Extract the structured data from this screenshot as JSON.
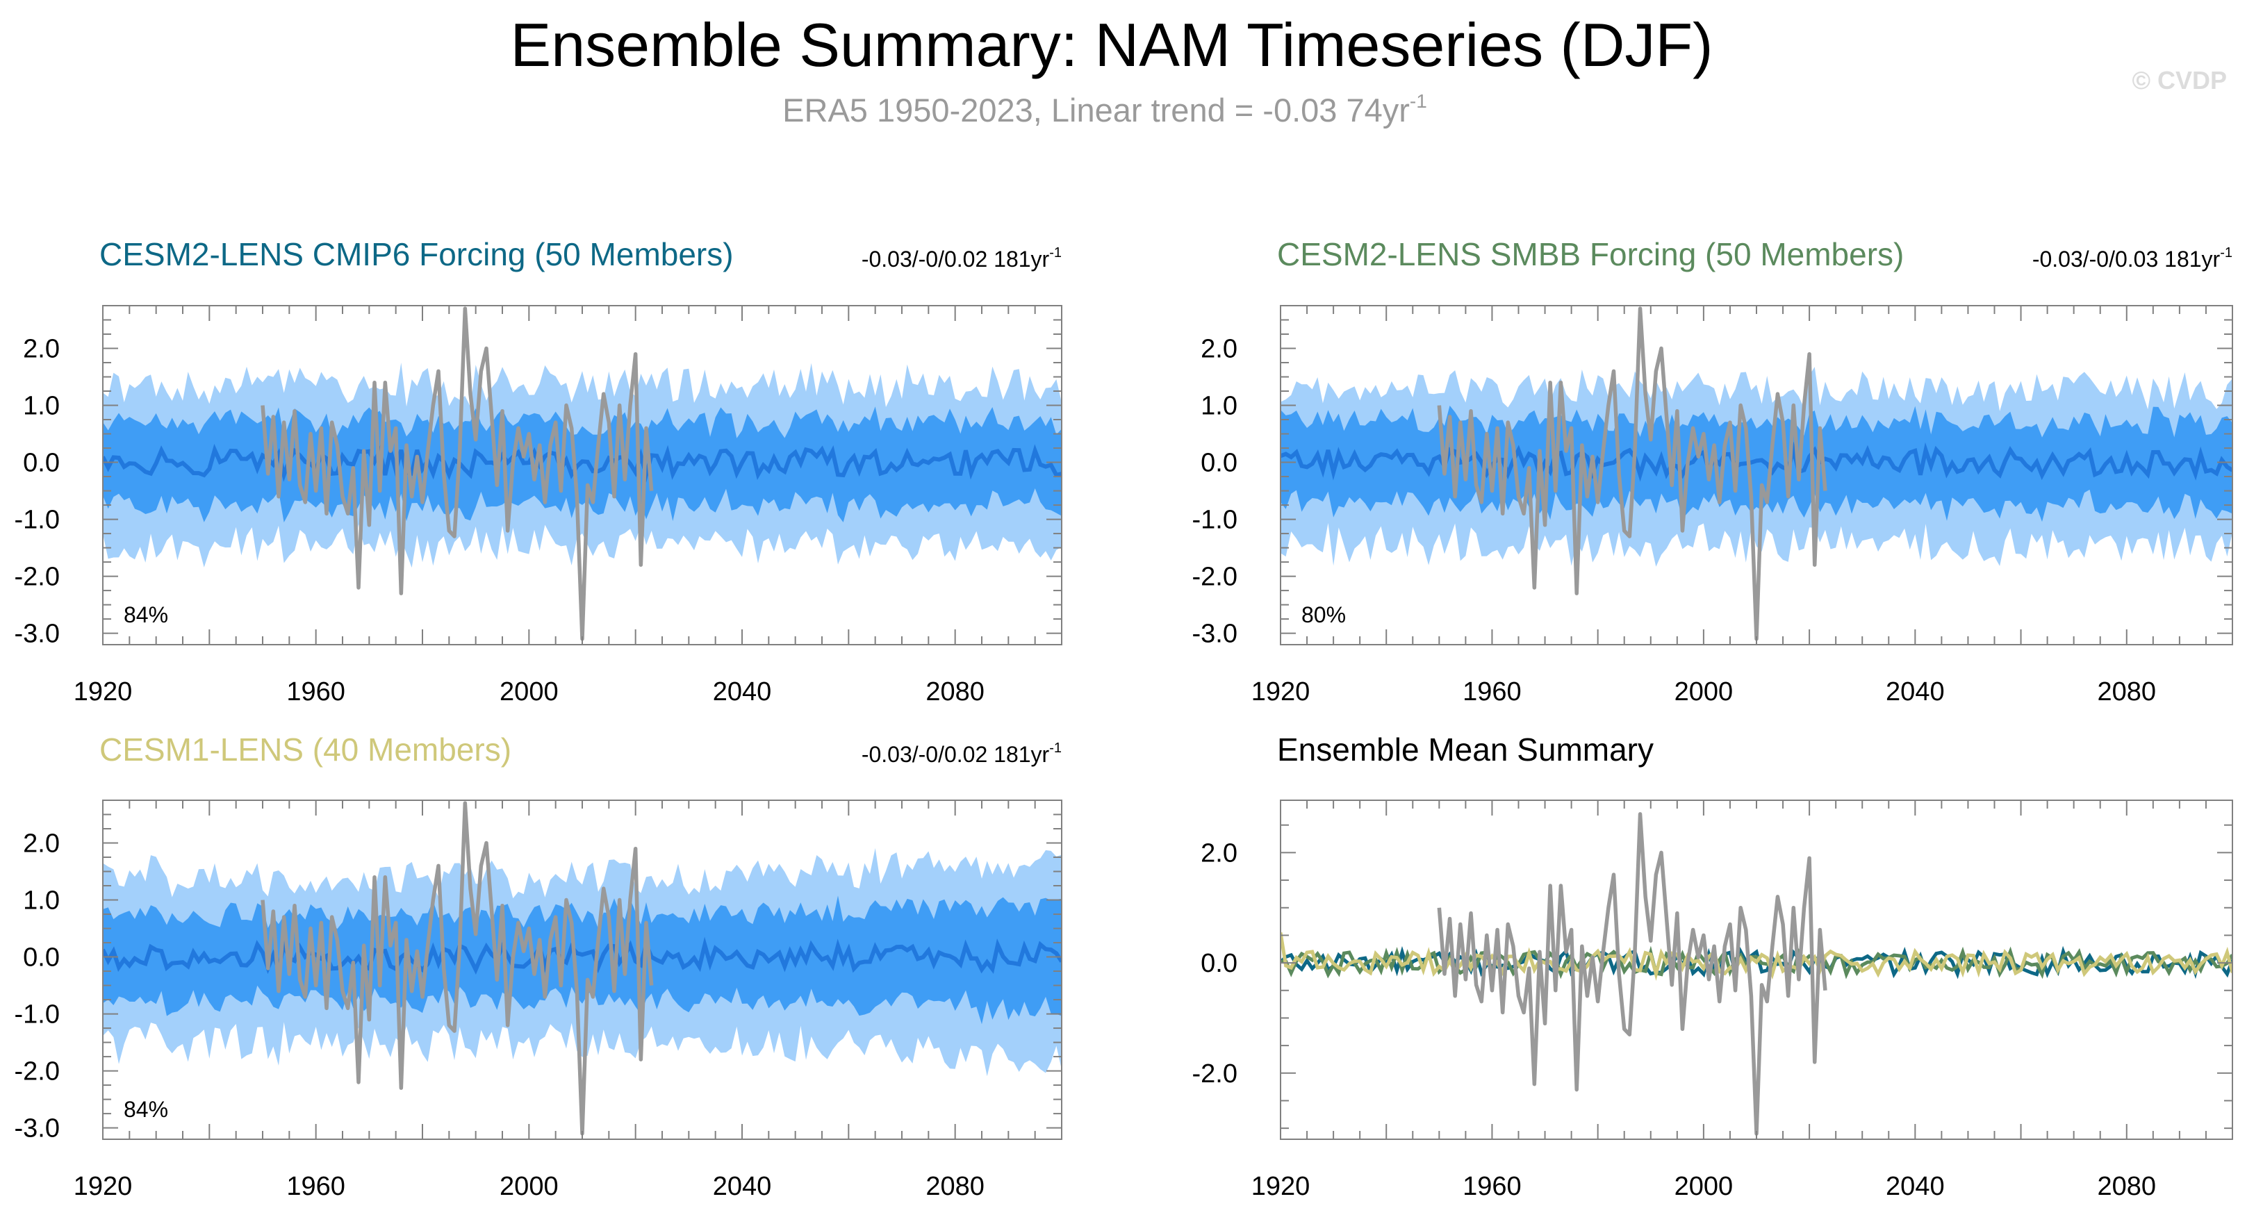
{
  "title": "Ensemble Summary: NAM Timeseries (DJF)",
  "subtitle": {
    "text": "ERA5 1950-2023, Linear trend = -0.03 74yr",
    "sup": "-1"
  },
  "copyright": "© CVDP",
  "colors": {
    "outer_band": "#a3d0fb",
    "inner_band": "#3f9df5",
    "ensemble_mean": "#2178dd",
    "observations": "#999999",
    "cesm2_cmip6": "#0d6886",
    "cesm2_smbb": "#5b8a5d",
    "cesm1": "#cfc87a",
    "frame": "#808080"
  },
  "panels": [
    {
      "id": "cesm2-cmip6",
      "title": "CESM2-LENS CMIP6 Forcing (50 Members)",
      "title_color": "#0d6886",
      "trend": "-0.03/-0/0.02 181yr",
      "trend_sup": "-1",
      "percent": "84%",
      "type": "ensemble"
    },
    {
      "id": "cesm2-smbb",
      "title": "CESM2-LENS SMBB Forcing (50 Members)",
      "title_color": "#5b8a5d",
      "trend": "-0.03/-0/0.03 181yr",
      "trend_sup": "-1",
      "percent": "80%",
      "type": "ensemble"
    },
    {
      "id": "cesm1",
      "title": "CESM1-LENS (40 Members)",
      "title_color": "#cfc87a",
      "trend": "-0.03/-0/0.02 181yr",
      "trend_sup": "-1",
      "percent": "84%",
      "type": "ensemble"
    },
    {
      "id": "ensemble-mean",
      "title": "Ensemble Mean Summary",
      "title_color": "#000000",
      "trend": "",
      "trend_sup": "",
      "percent": "",
      "type": "mean"
    }
  ],
  "chart_data": [
    {
      "type": "area",
      "title": "CESM2-LENS CMIP6 Forcing (50 Members)",
      "xlim": [
        1920,
        2100
      ],
      "ylim": [
        -3.2,
        2.75
      ],
      "x_ticks": [
        "1920",
        "1960",
        "2000",
        "2040",
        "2080"
      ],
      "y_ticks": [
        "2.0",
        "1.0",
        "0.0",
        "-1.0",
        "-2.0",
        "-3.0"
      ],
      "series": [
        {
          "kind": "band",
          "x_range": [
            1920,
            2100
          ],
          "upper_typical": 1.35,
          "lower_typical": -1.45
        },
        {
          "kind": "band",
          "x_range": [
            1920,
            2100
          ],
          "upper_typical": 0.7,
          "lower_typical": -0.75
        },
        {
          "kind": "ensemble-mean-line",
          "x_range": [
            1920,
            2100
          ],
          "values_near": 0.0
        },
        {
          "kind": "observations",
          "x_range": [
            1950,
            2023
          ]
        }
      ]
    },
    {
      "type": "area",
      "title": "CESM2-LENS SMBB Forcing (50 Members)",
      "xlim": [
        1920,
        2100
      ],
      "ylim": [
        -3.2,
        2.75
      ],
      "x_ticks": [
        "1920",
        "1960",
        "2000",
        "2040",
        "2080"
      ],
      "y_ticks": [
        "2.0",
        "1.0",
        "0.0",
        "-1.0",
        "-2.0",
        "-3.0"
      ],
      "series": [
        {
          "kind": "band",
          "x_range": [
            1920,
            2100
          ],
          "upper_typical": 1.3,
          "lower_typical": -1.45
        },
        {
          "kind": "band",
          "x_range": [
            1920,
            2100
          ],
          "upper_typical": 0.7,
          "lower_typical": -0.75
        },
        {
          "kind": "ensemble-mean-line",
          "x_range": [
            1920,
            2100
          ],
          "values_near": 0.0
        },
        {
          "kind": "observations",
          "x_range": [
            1950,
            2023
          ]
        }
      ]
    },
    {
      "type": "area",
      "title": "CESM1-LENS (40 Members)",
      "xlim": [
        1920,
        2100
      ],
      "ylim": [
        -3.2,
        2.75
      ],
      "x_ticks": [
        "1920",
        "1960",
        "2000",
        "2040",
        "2080"
      ],
      "y_ticks": [
        "2.0",
        "1.0",
        "0.0",
        "-1.0",
        "-2.0",
        "-3.0"
      ],
      "series": [
        {
          "kind": "band",
          "x_range": [
            1920,
            2100
          ],
          "upper_typical": 1.4,
          "lower_typical": -1.5
        },
        {
          "kind": "band",
          "x_range": [
            1920,
            2100
          ],
          "upper_typical": 0.75,
          "lower_typical": -0.75
        },
        {
          "kind": "ensemble-mean-line",
          "x_range": [
            1920,
            2100
          ],
          "values_near": 0.0
        },
        {
          "kind": "observations",
          "x_range": [
            1950,
            2023
          ]
        }
      ]
    },
    {
      "type": "line",
      "title": "Ensemble Mean Summary",
      "xlim": [
        1920,
        2100
      ],
      "ylim": [
        -3.2,
        2.95
      ],
      "x_ticks": [
        "1920",
        "1960",
        "2000",
        "2040",
        "2080"
      ],
      "y_ticks": [
        "2.0",
        "0.0",
        "-2.0"
      ],
      "series": [
        {
          "kind": "observations",
          "x_range": [
            1950,
            2023
          ]
        },
        {
          "kind": "mean-cesm2-cmip6",
          "x_range": [
            1920,
            2100
          ],
          "values_near": 0.0
        },
        {
          "kind": "mean-cesm2-smbb",
          "x_range": [
            1920,
            2100
          ],
          "values_near": 0.0
        },
        {
          "kind": "mean-cesm1",
          "x_range": [
            1920,
            2100
          ],
          "values_near": 0.0
        }
      ]
    }
  ],
  "observations": {
    "years": [
      1950,
      1951,
      1952,
      1953,
      1954,
      1955,
      1956,
      1957,
      1958,
      1959,
      1960,
      1961,
      1962,
      1963,
      1964,
      1965,
      1966,
      1967,
      1968,
      1969,
      1970,
      1971,
      1972,
      1973,
      1974,
      1975,
      1976,
      1977,
      1978,
      1979,
      1980,
      1981,
      1982,
      1983,
      1984,
      1985,
      1986,
      1987,
      1988,
      1989,
      1990,
      1991,
      1992,
      1993,
      1994,
      1995,
      1996,
      1997,
      1998,
      1999,
      2000,
      2001,
      2002,
      2003,
      2004,
      2005,
      2006,
      2007,
      2008,
      2009,
      2010,
      2011,
      2012,
      2013,
      2014,
      2015,
      2016,
      2017,
      2018,
      2019,
      2020,
      2021,
      2022,
      2023
    ],
    "values": [
      1.0,
      -0.2,
      0.8,
      -0.6,
      0.7,
      -0.3,
      0.9,
      -0.4,
      -0.7,
      0.5,
      -0.5,
      0.6,
      -0.9,
      0.7,
      0.3,
      -0.6,
      -0.9,
      -0.1,
      -2.2,
      0.2,
      -1.1,
      1.4,
      -0.5,
      1.4,
      0.2,
      0.6,
      -2.3,
      0.3,
      -0.6,
      0.1,
      -0.7,
      0.2,
      1.0,
      1.6,
      -0.2,
      -1.2,
      -1.3,
      0.2,
      2.7,
      1.2,
      0.4,
      1.6,
      2.0,
      0.8,
      -0.4,
      0.9,
      -1.2,
      0.0,
      0.6,
      0.1,
      0.5,
      -0.3,
      0.3,
      -0.7,
      0.3,
      0.7,
      -0.5,
      1.0,
      0.6,
      -0.6,
      -3.1,
      -0.4,
      -0.7,
      0.3,
      1.2,
      0.7,
      -0.6,
      1.0,
      -0.3,
      1.0,
      1.9,
      -1.8,
      0.6,
      -0.5
    ]
  }
}
